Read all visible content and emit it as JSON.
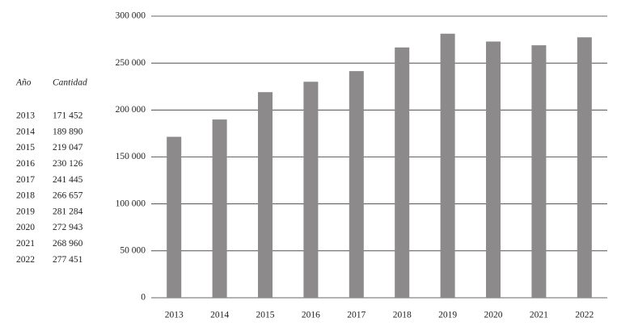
{
  "table": {
    "columns": [
      "Año",
      "Cantidad"
    ]
  },
  "chart_data": {
    "type": "bar",
    "categories": [
      "2013",
      "2014",
      "2015",
      "2016",
      "2017",
      "2018",
      "2019",
      "2020",
      "2021",
      "2022"
    ],
    "values": [
      171452,
      189890,
      219047,
      230126,
      241445,
      266657,
      281284,
      272943,
      268960,
      277451
    ],
    "value_labels": [
      "171 452",
      "189 890",
      "219 047",
      "230 126",
      "241 445",
      "266 657",
      "281 284",
      "272 943",
      "268 960",
      "277 451"
    ],
    "color": "#8c8a8b",
    "ylim": [
      0,
      300000
    ],
    "yticks": [
      0,
      {
        "value": 50000,
        "label": "50 000"
      },
      {
        "value": 100000,
        "label": "100 000"
      },
      {
        "value": 150000,
        "label": "150 000"
      },
      {
        "value": 200000,
        "label": "200 000"
      },
      {
        "value": 250000,
        "label": "250 000"
      },
      {
        "value": 300000,
        "label": "300 000"
      }
    ],
    "grid": true
  }
}
